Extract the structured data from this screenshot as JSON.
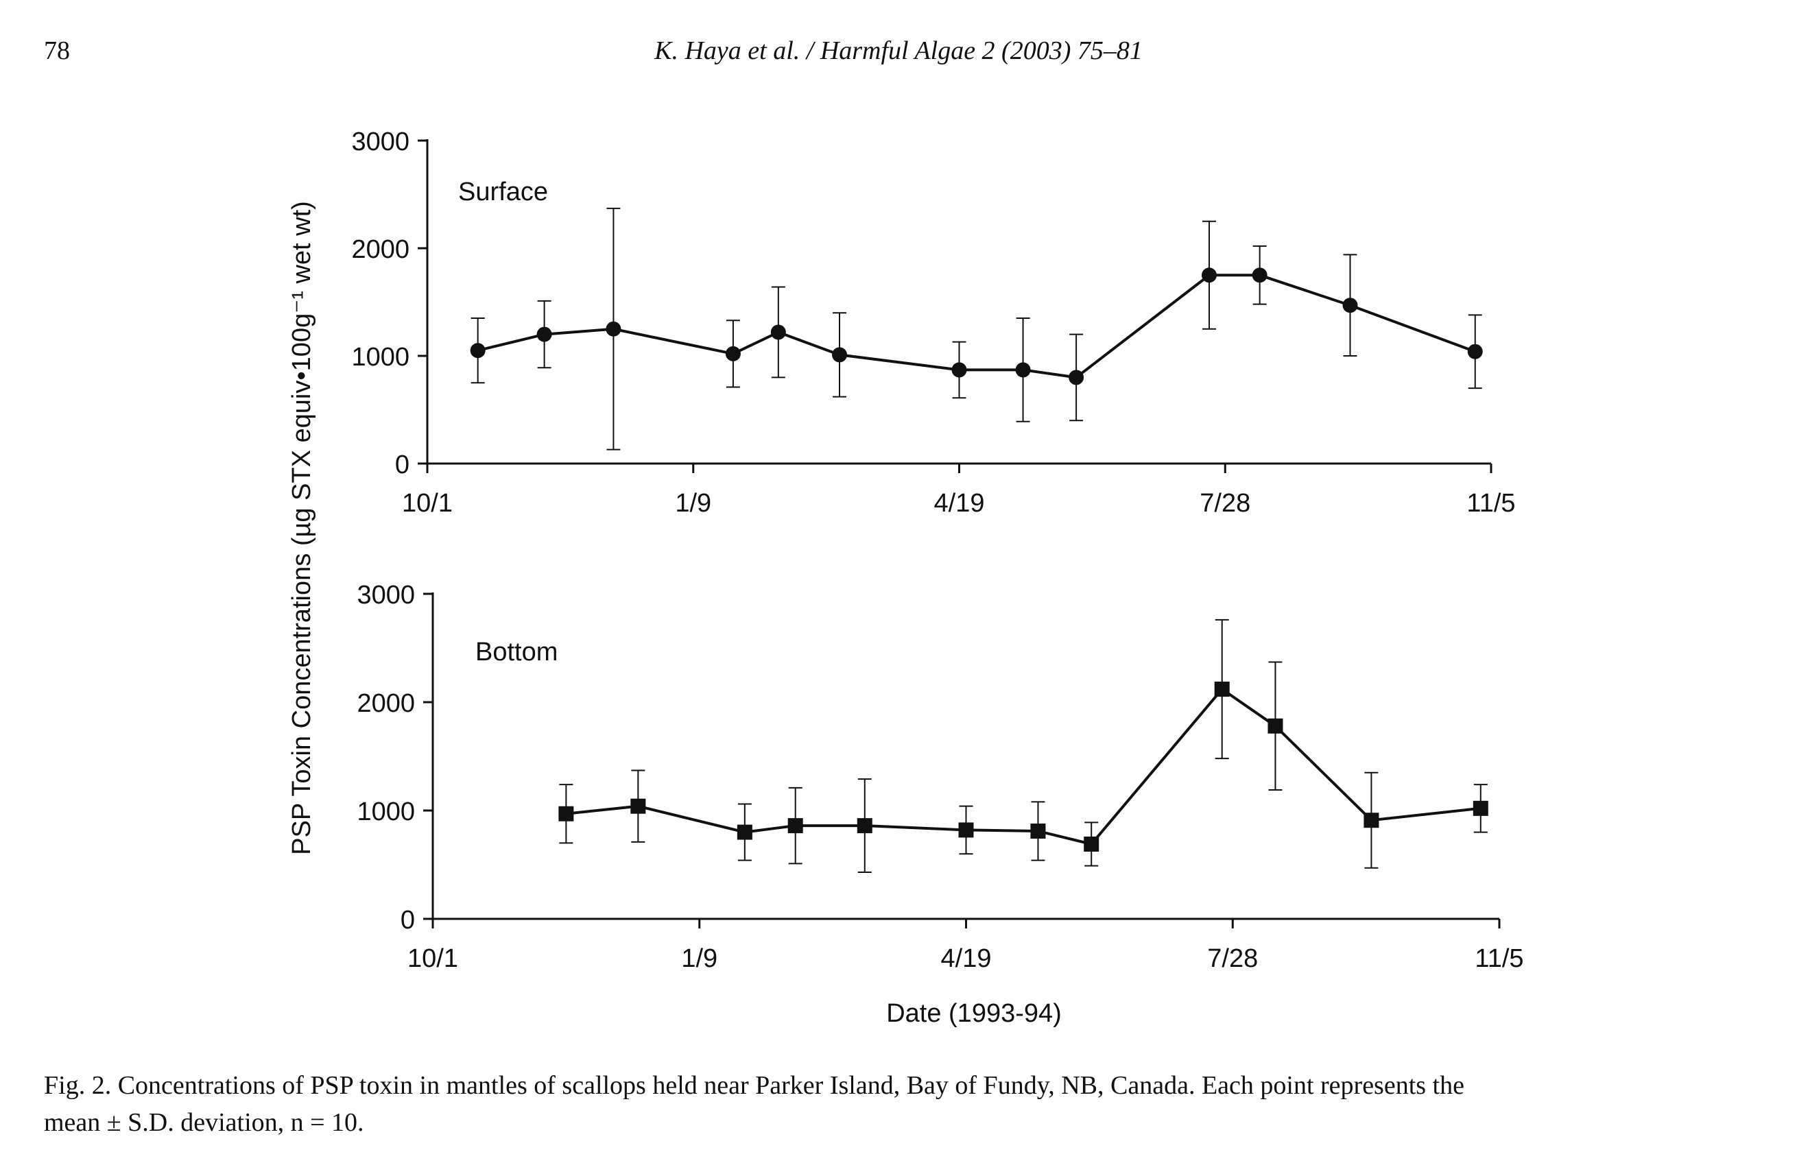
{
  "header": {
    "page_number": "78",
    "running_title": "K. Haya et al. / Harmful Algae 2 (2003) 75–81"
  },
  "caption": {
    "line1": "Fig. 2. Concentrations of PSP toxin in mantles of scallops held near Parker Island, Bay of Fundy, NB, Canada. Each point represents the",
    "line2": "mean ± S.D. deviation, n = 10."
  },
  "chart_data": {
    "type": "line",
    "ylabel": "PSP Toxin Concentrations (µg STX equiv•100g⁻¹ wet wt)",
    "xlabel": "Date (1993-94)",
    "x_ticks": [
      "10/1",
      "1/9",
      "4/19",
      "7/28",
      "11/5"
    ],
    "xlim": [
      "1993-10-01",
      "1994-11-05"
    ],
    "ylim": [
      0,
      3000
    ],
    "y_ticks": [
      0,
      1000,
      2000,
      3000
    ],
    "grid": false,
    "panels": [
      {
        "name": "Surface",
        "marker": "circle",
        "points": [
          {
            "x": "1993-10-20",
            "y": 1050,
            "sd": 300
          },
          {
            "x": "1993-11-14",
            "y": 1200,
            "sd": 310
          },
          {
            "x": "1993-12-10",
            "y": 1250,
            "sd": 1120
          },
          {
            "x": "1994-01-24",
            "y": 1020,
            "sd": 310
          },
          {
            "x": "1994-02-10",
            "y": 1220,
            "sd": 420
          },
          {
            "x": "1994-03-05",
            "y": 1010,
            "sd": 390
          },
          {
            "x": "1994-04-19",
            "y": 870,
            "sd": 260
          },
          {
            "x": "1994-05-13",
            "y": 870,
            "sd": 480
          },
          {
            "x": "1994-06-02",
            "y": 800,
            "sd": 400
          },
          {
            "x": "1994-07-22",
            "y": 1750,
            "sd": 500
          },
          {
            "x": "1994-08-10",
            "y": 1750,
            "sd": 270
          },
          {
            "x": "1994-09-13",
            "y": 1470,
            "sd": 470
          },
          {
            "x": "1994-10-30",
            "y": 1040,
            "sd": 340
          }
        ]
      },
      {
        "name": "Bottom",
        "marker": "square",
        "points": [
          {
            "x": "1993-11-20",
            "y": 970,
            "sd": 270
          },
          {
            "x": "1993-12-17",
            "y": 1040,
            "sd": 330
          },
          {
            "x": "1994-01-26",
            "y": 800,
            "sd": 260
          },
          {
            "x": "1994-02-14",
            "y": 860,
            "sd": 350
          },
          {
            "x": "1994-03-12",
            "y": 860,
            "sd": 430
          },
          {
            "x": "1994-04-19",
            "y": 820,
            "sd": 220
          },
          {
            "x": "1994-05-16",
            "y": 810,
            "sd": 270
          },
          {
            "x": "1994-06-05",
            "y": 690,
            "sd": 200
          },
          {
            "x": "1994-07-24",
            "y": 2120,
            "sd": 640
          },
          {
            "x": "1994-08-13",
            "y": 1780,
            "sd": 590
          },
          {
            "x": "1994-09-18",
            "y": 910,
            "sd": 440
          },
          {
            "x": "1994-10-29",
            "y": 1020,
            "sd": 220
          }
        ]
      }
    ]
  }
}
